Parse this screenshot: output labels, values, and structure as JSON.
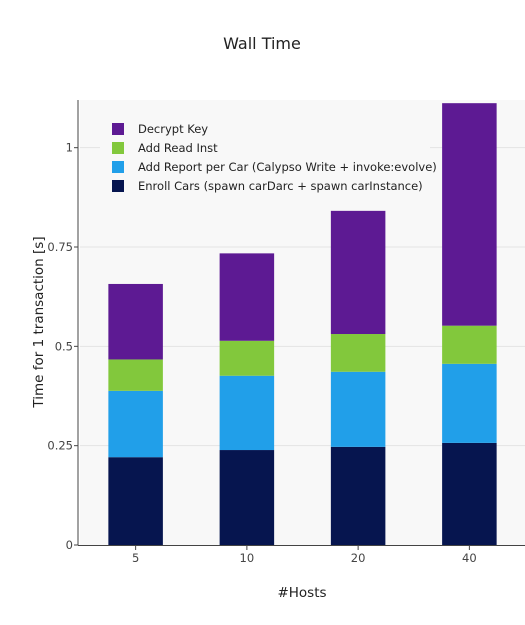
{
  "chart_data": {
    "type": "bar",
    "stacked": true,
    "title": "Wall Time",
    "xlabel": "#Hosts",
    "ylabel": "Time for 1 transaction [s]",
    "categories": [
      "5",
      "10",
      "20",
      "40"
    ],
    "ylim": [
      0,
      1.12
    ],
    "yticks": [
      0,
      0.25,
      0.5,
      0.75,
      1
    ],
    "ytick_labels": [
      "0",
      "0.25",
      "0.5",
      "0.75",
      "1"
    ],
    "grid": true,
    "legend_position": "top-left",
    "series": [
      {
        "name": "Enroll Cars (spawn carDarc + spawn carInstance)",
        "color": "#06154f",
        "values": [
          0.221,
          0.239,
          0.247,
          0.257
        ]
      },
      {
        "name": "Add Report per Car (Calypso Write + invoke:evolve)",
        "color": "#219fe9",
        "values": [
          0.167,
          0.187,
          0.189,
          0.199
        ]
      },
      {
        "name": "Add Read Inst",
        "color": "#82c83c",
        "values": [
          0.079,
          0.088,
          0.095,
          0.096
        ]
      },
      {
        "name": "Decrypt Key",
        "color": "#5d1a93",
        "values": [
          0.19,
          0.22,
          0.31,
          0.56
        ]
      }
    ],
    "legend_order": [
      3,
      2,
      1,
      0
    ]
  }
}
